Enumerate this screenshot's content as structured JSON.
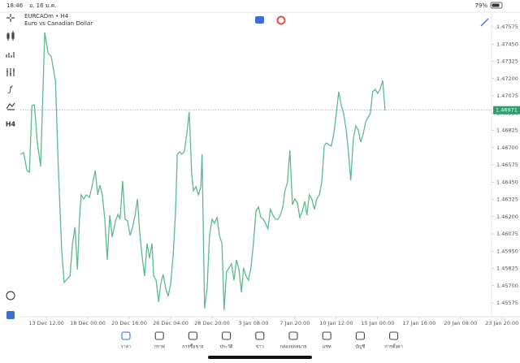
{
  "status_bar": {
    "time": "18:46",
    "date": "อ. 16 ม.ค.",
    "battery": "79%"
  },
  "chart_data": {
    "type": "line",
    "title": "EURCADm • H4",
    "subtitle": "Euro vs Canadian Dollar",
    "color": "#5dba8c",
    "x": [
      -0.63,
      -0.55,
      -0.47,
      -0.41,
      -0.35,
      -0.29,
      -0.22,
      -0.14,
      -0.04,
      0.04,
      0.12,
      0.22,
      0.29,
      0.37,
      0.43,
      0.51,
      0.57,
      0.63,
      0.69,
      0.75,
      0.8,
      0.84,
      0.9,
      0.96,
      1.04,
      1.12,
      1.18,
      1.24,
      1.29,
      1.35,
      1.41,
      1.47,
      1.53,
      1.59,
      1.67,
      1.73,
      1.78,
      1.84,
      1.9,
      1.96,
      2.02,
      2.08,
      2.14,
      2.2,
      2.25,
      2.31,
      2.37,
      2.43,
      2.49,
      2.55,
      2.59,
      2.65,
      2.71,
      2.76,
      2.82,
      2.88,
      2.94,
      3,
      3.06,
      3.12,
      3.16,
      3.22,
      3.27,
      3.33,
      3.39,
      3.45,
      3.51,
      3.55,
      3.61,
      3.67,
      3.73,
      3.76,
      3.82,
      3.88,
      3.94,
      4,
      4.06,
      4.12,
      4.18,
      4.24,
      4.29,
      4.35,
      4.41,
      4.47,
      4.53,
      4.59,
      4.65,
      4.71,
      4.76,
      4.82,
      4.88,
      4.94,
      5,
      5.06,
      5.12,
      5.18,
      5.24,
      5.29,
      5.35,
      5.41,
      5.47,
      5.53,
      5.59,
      5.65,
      5.71,
      5.76,
      5.82,
      5.88,
      5.94,
      6,
      6.06,
      6.12,
      6.18,
      6.24,
      6.29,
      6.35,
      6.41,
      6.47,
      6.53,
      6.59,
      6.65,
      6.71,
      6.76,
      6.82,
      6.88,
      6.94,
      7,
      7.06,
      7.12,
      7.18,
      7.24,
      7.29,
      7.35,
      7.41,
      7.47,
      7.53,
      7.59,
      7.65,
      7.71,
      7.76,
      7.82,
      7.88,
      7.94,
      8,
      8.06,
      8.12,
      8.18
    ],
    "values": [
      1.46652,
      1.46664,
      1.46534,
      1.46522,
      1.47005,
      1.4701,
      1.4674,
      1.46564,
      1.47534,
      1.47387,
      1.47357,
      1.47181,
      1.46534,
      1.45946,
      1.45723,
      1.45752,
      1.4577,
      1.46005,
      1.46123,
      1.45817,
      1.46193,
      1.46358,
      1.46328,
      1.46358,
      1.4634,
      1.46446,
      1.46534,
      1.46358,
      1.46428,
      1.46358,
      1.46181,
      1.45887,
      1.46211,
      1.46052,
      1.4617,
      1.46217,
      1.46181,
      1.46458,
      1.46181,
      1.4617,
      1.46064,
      1.46123,
      1.46211,
      1.46328,
      1.46093,
      1.45917,
      1.4577,
      1.46005,
      1.45899,
      1.46005,
      1.4577,
      1.4574,
      1.45582,
      1.45711,
      1.45782,
      1.45682,
      1.45623,
      1.45711,
      1.45917,
      1.4624,
      1.46652,
      1.46669,
      1.46652,
      1.46669,
      1.46799,
      1.46958,
      1.46505,
      1.46387,
      1.46417,
      1.46358,
      1.46417,
      1.46652,
      1.45535,
      1.45682,
      1.46064,
      1.46181,
      1.46152,
      1.46193,
      1.46064,
      1.46005,
      1.45523,
      1.45799,
      1.45829,
      1.45858,
      1.4574,
      1.45887,
      1.45817,
      1.45652,
      1.45829,
      1.4577,
      1.4574,
      1.45829,
      1.46005,
      1.4624,
      1.4627,
      1.46193,
      1.46181,
      1.46152,
      1.46111,
      1.46252,
      1.46211,
      1.46181,
      1.46181,
      1.46211,
      1.4627,
      1.46387,
      1.46446,
      1.46681,
      1.46287,
      1.46328,
      1.46299,
      1.46193,
      1.4624,
      1.46311,
      1.46211,
      1.46358,
      1.46328,
      1.46252,
      1.46328,
      1.46358,
      1.46446,
      1.46711,
      1.46734,
      1.46722,
      1.46711,
      1.46799,
      1.46946,
      1.47105,
      1.47005,
      1.46946,
      1.46828,
      1.46681,
      1.46464,
      1.46758,
      1.46858,
      1.46828,
      1.4674,
      1.46799,
      1.46887,
      1.46916,
      1.46946,
      1.47105,
      1.47122,
      1.47093,
      1.47122,
      1.47187,
      1.46971
    ],
    "current_price": 1.46971,
    "xlim": [
      -0.63,
      10.75
    ],
    "xticks": [
      {
        "value": 0,
        "label": "13 Dec 12:00"
      },
      {
        "value": 1,
        "label": "18 Dec 00:00"
      },
      {
        "value": 2,
        "label": "20 Dec 16:00"
      },
      {
        "value": 3,
        "label": "26 Dec 04:00"
      },
      {
        "value": 4,
        "label": "28 Dec 20:00"
      },
      {
        "value": 5,
        "label": "3 Jan 08:00"
      },
      {
        "value": 6,
        "label": "7 Jan 20:00"
      },
      {
        "value": 7,
        "label": "10 Jan 12:00"
      },
      {
        "value": 8,
        "label": "15 Jan 00:00"
      },
      {
        "value": 9,
        "label": "17 Jan 16:00"
      },
      {
        "value": 10,
        "label": "20 Jan 08:00"
      },
      {
        "value": 11,
        "label": "23 Jan 20:00"
      }
    ],
    "ylim": [
      1.45475,
      1.47681
    ],
    "yticks": [
      1.47575,
      {
        "value": 1.4745,
        "label": "1.47450"
      },
      1.47325,
      {
        "value": 1.472,
        "label": "1.47200"
      },
      1.47075,
      {
        "value": 1.4695,
        "label": "1.46950"
      },
      1.46825,
      {
        "value": 1.467,
        "label": "1.46700"
      },
      1.46575,
      {
        "value": 1.4645,
        "label": "1.46450"
      },
      1.46325,
      {
        "value": 1.462,
        "label": "1.46200"
      },
      1.46075,
      {
        "value": 1.4595,
        "label": "1.45950"
      },
      1.45825,
      {
        "value": 1.457,
        "label": "1.45700"
      },
      1.45575
    ]
  },
  "side_tools": {
    "timeframe": "H4"
  },
  "tabs": [
    "ราคา",
    "กราฟ",
    "การซื้อขาย",
    "ประวัติ",
    "ข่าว",
    "กล่องจดหมาย",
    "แชท",
    "บัญชี",
    "การตั้งค่า"
  ]
}
